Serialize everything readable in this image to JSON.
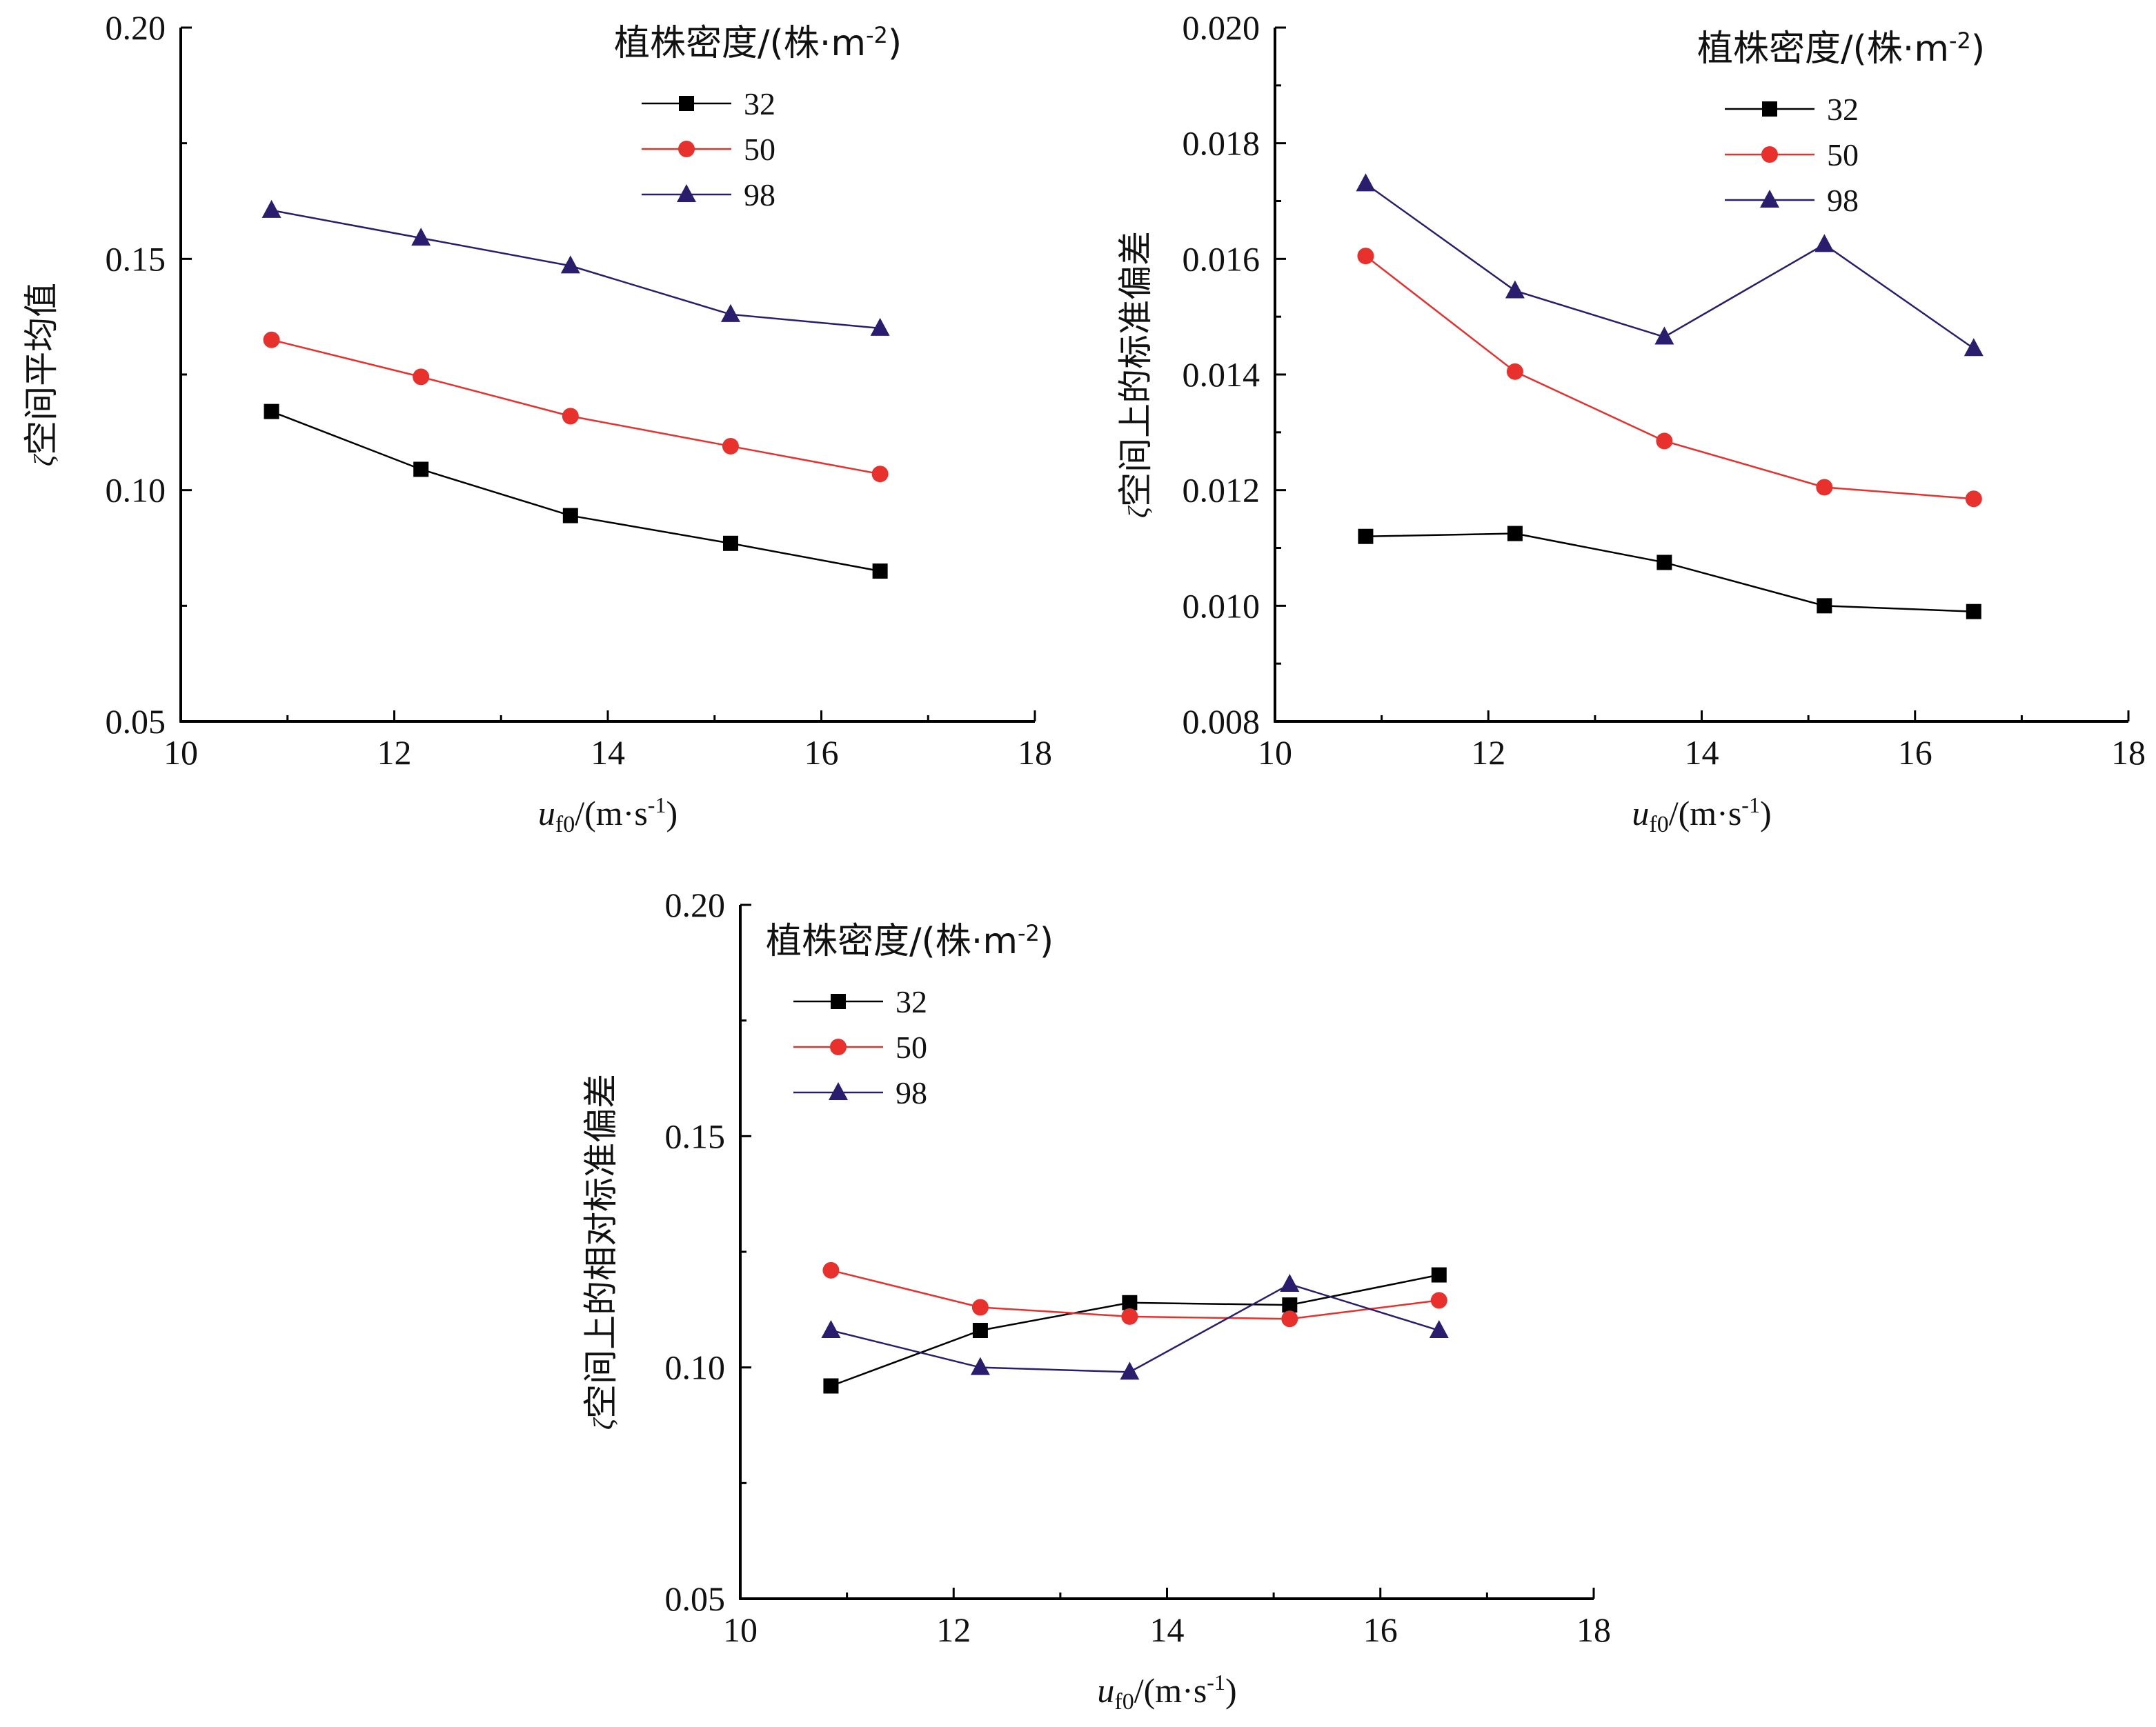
{
  "chart_data": [
    {
      "type": "line",
      "ylabel": "ζ空间平均值",
      "xlabel": "u_f0/(m·s⁻¹)",
      "xlim": [
        10,
        18
      ],
      "ylim": [
        0.05,
        0.2
      ],
      "xticks": [
        "10",
        "12",
        "14",
        "16",
        "18"
      ],
      "yticks": [
        "0.05",
        "0.10",
        "0.15",
        "0.20"
      ],
      "legend": {
        "title": "植株密度/(株·m⁻²)",
        "placement": "top-right"
      },
      "x": [
        10.85,
        12.25,
        13.65,
        15.15,
        16.55
      ],
      "series": [
        {
          "name": "32",
          "marker": "square",
          "color": "#000000",
          "values": [
            0.117,
            0.1045,
            0.0945,
            0.0885,
            0.0825
          ]
        },
        {
          "name": "50",
          "marker": "circle",
          "color": "#e8302d",
          "values": [
            0.1325,
            0.1245,
            0.116,
            0.1095,
            0.1035
          ]
        },
        {
          "name": "98",
          "marker": "triangle",
          "color": "#2b1d6e",
          "values": [
            0.1605,
            0.1545,
            0.1485,
            0.138,
            0.135
          ]
        }
      ]
    },
    {
      "type": "line",
      "ylabel": "ζ空间上的标准偏差",
      "xlabel": "u_f0/(m·s⁻¹)",
      "xlim": [
        10,
        18
      ],
      "ylim": [
        0.008,
        0.02
      ],
      "xticks": [
        "10",
        "12",
        "14",
        "16",
        "18"
      ],
      "yticks": [
        "0.008",
        "0.010",
        "0.012",
        "0.014",
        "0.016",
        "0.018",
        "0.020"
      ],
      "legend": {
        "title": "植株密度/(株·m⁻²)",
        "placement": "top-right"
      },
      "x": [
        10.85,
        12.25,
        13.65,
        15.15,
        16.55
      ],
      "series": [
        {
          "name": "32",
          "marker": "square",
          "color": "#000000",
          "values": [
            0.0112,
            0.01125,
            0.01075,
            0.01,
            0.0099
          ]
        },
        {
          "name": "50",
          "marker": "circle",
          "color": "#e8302d",
          "values": [
            0.01605,
            0.01405,
            0.01285,
            0.01205,
            0.01185
          ]
        },
        {
          "name": "98",
          "marker": "triangle",
          "color": "#2b1d6e",
          "values": [
            0.0173,
            0.01545,
            0.01465,
            0.01625,
            0.01445
          ]
        }
      ]
    },
    {
      "type": "line",
      "ylabel": "ζ空间上的相对标准偏差",
      "xlabel": "u_f0/(m·s⁻¹)",
      "xlim": [
        10,
        18
      ],
      "ylim": [
        0.05,
        0.2
      ],
      "xticks": [
        "10",
        "12",
        "14",
        "16",
        "18"
      ],
      "yticks": [
        "0.05",
        "0.10",
        "0.15",
        "0.20"
      ],
      "legend": {
        "title": "植株密度/(株·m⁻²)",
        "placement": "top-left"
      },
      "x": [
        10.85,
        12.25,
        13.65,
        15.15,
        16.55
      ],
      "series": [
        {
          "name": "32",
          "marker": "square",
          "color": "#000000",
          "values": [
            0.096,
            0.108,
            0.114,
            0.1135,
            0.12
          ]
        },
        {
          "name": "50",
          "marker": "circle",
          "color": "#e8302d",
          "values": [
            0.121,
            0.113,
            0.111,
            0.1105,
            0.1145
          ]
        },
        {
          "name": "98",
          "marker": "triangle",
          "color": "#2b1d6e",
          "values": [
            0.108,
            0.1,
            0.099,
            0.118,
            0.108
          ]
        }
      ]
    }
  ]
}
